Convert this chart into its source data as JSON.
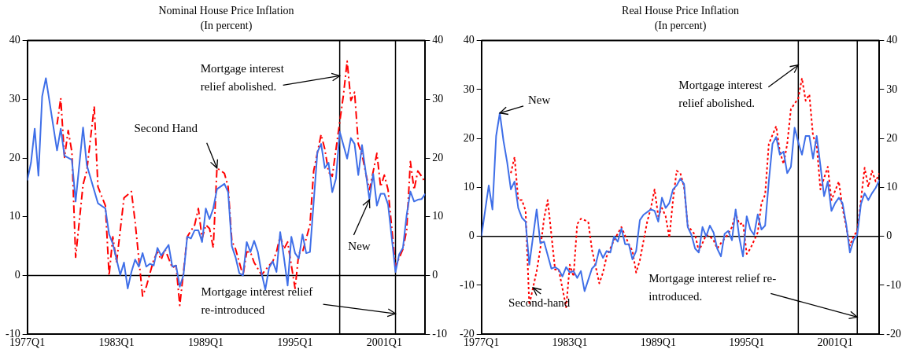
{
  "chart_data": [
    {
      "type": "line",
      "title": "Nominal House Price Inflation",
      "subtitle": "(In percent)",
      "xlim": [
        "1977-01",
        "2003-10"
      ],
      "xticks": [
        {
          "value": "1977-01",
          "label": "1977Q1"
        },
        {
          "value": "1983-01",
          "label": "1983Q1"
        },
        {
          "value": "1989-01",
          "label": "1989Q1"
        },
        {
          "value": "1995-01",
          "label": "1995Q1"
        },
        {
          "value": "2001-01",
          "label": "2001Q1"
        }
      ],
      "ylim": [
        -10,
        40
      ],
      "yticks": [
        -10,
        0,
        10,
        20,
        30,
        40
      ],
      "y2lim": [
        -10,
        40
      ],
      "y2ticks": [
        -10,
        0,
        10,
        20,
        30,
        40
      ],
      "series": [
        {
          "color": "#3f6fe8",
          "line_style": "solid",
          "x": [
            "1977-01",
            "1977-04",
            "1977-07",
            "1977-10",
            "1978-01",
            "1978-04",
            "1979-01",
            "1979-04",
            "1979-07",
            "1980-01",
            "1980-04",
            "1980-10",
            "1981-01",
            "1981-10",
            "1982-04",
            "1982-07",
            "1982-10",
            "1983-04",
            "1983-07",
            "1983-10",
            "1984-01",
            "1984-04",
            "1984-07",
            "1984-10",
            "1985-01",
            "1985-04",
            "1985-07",
            "1985-10",
            "1986-01",
            "1986-07",
            "1986-10",
            "1987-01",
            "1987-04",
            "1987-07",
            "1987-10",
            "1988-01",
            "1988-04",
            "1988-07",
            "1988-10",
            "1989-01",
            "1989-04",
            "1989-07",
            "1989-10",
            "1990-04",
            "1990-07",
            "1990-10",
            "1991-01",
            "1991-04",
            "1991-07",
            "1991-10",
            "1992-01",
            "1992-04",
            "1992-07",
            "1992-10",
            "1993-01",
            "1993-04",
            "1993-07",
            "1993-10",
            "1994-01",
            "1994-04",
            "1994-07",
            "1994-10",
            "1995-01",
            "1995-04",
            "1995-07",
            "1995-10",
            "1996-01",
            "1996-07",
            "1996-10",
            "1997-01",
            "1997-04",
            "1997-07",
            "1997-10",
            "1998-01",
            "1998-07",
            "1998-10",
            "1999-01",
            "1999-04",
            "1999-07",
            "2000-01",
            "2000-04",
            "2000-07",
            "2000-10",
            "2001-01",
            "2001-04",
            "2001-10",
            "2002-01",
            "2002-04",
            "2002-07",
            "2002-10",
            "2003-01",
            "2003-04",
            "2003-07",
            "2003-10"
          ],
          "values": [
            16.2,
            19.2,
            25,
            17,
            30.5,
            33.6,
            21.3,
            25,
            20.4,
            19.7,
            12.6,
            25.2,
            18.8,
            12.3,
            11.4,
            7,
            5.4,
            0.1,
            2.2,
            -2.2,
            0.6,
            2.7,
            1.5,
            3.8,
            1.5,
            2,
            1.7,
            4.7,
            3.4,
            5.2,
            1.5,
            1.7,
            -1.9,
            0.1,
            6.6,
            6.3,
            7.7,
            7.7,
            5.7,
            11.4,
            9.6,
            11.4,
            14.7,
            15.6,
            14.2,
            5,
            3.1,
            0.4,
            0,
            5.7,
            4,
            5.9,
            4,
            0.4,
            -2.4,
            1.3,
            2.4,
            0.6,
            7.4,
            3.1,
            -1.7,
            6.6,
            3.8,
            2.9,
            7,
            3.8,
            4,
            21,
            22.4,
            18.3,
            19.2,
            14.2,
            16.5,
            24.5,
            19.9,
            23.4,
            22.4,
            17.1,
            22.2,
            12.9,
            17.3,
            11.9,
            13.9,
            13.9,
            12.1,
            0.6,
            3.6,
            4.7,
            10.3,
            14.3,
            12.6,
            12.9,
            13,
            13.9
          ]
        },
        {
          "color": "#ff0000",
          "line_style": "dashed",
          "x": [
            "1979-01",
            "1979-04",
            "1979-07",
            "1979-10",
            "1980-01",
            "1980-04",
            "1980-10",
            "1981-01",
            "1981-07",
            "1981-10",
            "1982-04",
            "1982-07",
            "1982-10",
            "1983-01",
            "1983-07",
            "1984-01",
            "1984-04",
            "1984-10",
            "1985-01",
            "1985-07",
            "1985-10",
            "1986-01",
            "1986-04",
            "1986-10",
            "1987-01",
            "1987-04",
            "1987-07",
            "1987-10",
            "1988-04",
            "1988-07",
            "1988-10",
            "1989-01",
            "1989-04",
            "1989-07",
            "1989-10",
            "1990-04",
            "1990-07",
            "1990-10",
            "1991-01",
            "1991-07",
            "1991-10",
            "1992-01",
            "1992-04",
            "1992-10",
            "1993-04",
            "1993-07",
            "1993-10",
            "1994-01",
            "1994-04",
            "1994-07",
            "1995-01",
            "1995-04",
            "1995-07",
            "1996-01",
            "1996-04",
            "1996-10",
            "1997-01",
            "1997-04",
            "1997-07",
            "1997-10",
            "1998-01",
            "1998-04",
            "1998-07",
            "1998-10",
            "1999-01",
            "1999-04",
            "1999-07",
            "1999-10",
            "2000-01",
            "2000-07",
            "2000-10",
            "2001-01",
            "2001-04",
            "2001-10",
            "2002-04",
            "2002-07",
            "2002-10",
            "2003-01",
            "2003-04",
            "2003-07",
            "2003-10"
          ],
          "values": [
            25.7,
            30.2,
            20.1,
            24.7,
            21,
            3.1,
            15.5,
            17.8,
            28.8,
            15.1,
            11.9,
            0,
            6.6,
            2.2,
            13.2,
            14.3,
            9.1,
            -3.5,
            -1.9,
            2.7,
            4,
            2.7,
            4.5,
            1.3,
            1.7,
            -5.1,
            0.6,
            6.6,
            8.6,
            11.4,
            6.3,
            8.6,
            8,
            4.7,
            18.3,
            17.4,
            15.1,
            5.9,
            4.5,
            0,
            4,
            4,
            2.2,
            0.1,
            1.7,
            2.4,
            4,
            6.8,
            4.5,
            5.7,
            -2.2,
            3.8,
            4,
            8.6,
            17.8,
            24,
            21.5,
            17.6,
            16.9,
            21.5,
            26.1,
            30.7,
            36.5,
            29.8,
            31.2,
            22.4,
            20.6,
            17.4,
            14.6,
            20.8,
            15.1,
            17.1,
            14.6,
            1.5,
            4.5,
            7.7,
            19.4,
            14.6,
            17.8,
            16.9,
            15.8
          ]
        }
      ],
      "ref_lines": [
        {
          "axis": "y",
          "value": 0,
          "color": "#000000"
        },
        {
          "axis": "x",
          "value": "1998-01",
          "color": "#000000"
        },
        {
          "axis": "x",
          "value": "2001-10",
          "color": "#000000"
        }
      ],
      "annotations": [
        {
          "text": "Mortgage interest\nrelief abolished.",
          "x": "1998-01",
          "y": 34
        },
        {
          "text": "Second Hand",
          "x": "1989-10",
          "y": 18.3
        },
        {
          "text": "New",
          "x": "2000-01",
          "y": 12.9
        },
        {
          "text": "Mortgage interest relief\nre-introduced",
          "x": "2001-10",
          "y": -6.5
        }
      ]
    },
    {
      "type": "line",
      "title": "Real House Price Inflation",
      "subtitle": "(In percent)",
      "xlim": [
        "1977-01",
        "2004-01"
      ],
      "xticks": [
        {
          "value": "1977-01",
          "label": "1977Q1"
        },
        {
          "value": "1983-01",
          "label": "1983Q1"
        },
        {
          "value": "1989-01",
          "label": "1989Q1"
        },
        {
          "value": "1995-01",
          "label": "1995Q1"
        },
        {
          "value": "2001-01",
          "label": "2001Q1"
        }
      ],
      "ylim": [
        -20,
        40
      ],
      "yticks": [
        -20,
        -10,
        0,
        10,
        20,
        30,
        40
      ],
      "y2lim": [
        -20,
        40
      ],
      "y2ticks": [
        -20,
        -10,
        0,
        10,
        20,
        30,
        40
      ],
      "series": [
        {
          "color": "#3f6fe8",
          "line_style": "solid",
          "x": [
            "1977-01",
            "1977-07",
            "1977-10",
            "1978-01",
            "1978-04",
            "1978-07",
            "1978-10",
            "1979-01",
            "1979-04",
            "1979-07",
            "1979-10",
            "1980-01",
            "1980-04",
            "1980-10",
            "1981-01",
            "1981-04",
            "1981-10",
            "1982-01",
            "1982-04",
            "1982-07",
            "1982-10",
            "1983-01",
            "1983-04",
            "1983-07",
            "1983-10",
            "1984-01",
            "1984-07",
            "1984-10",
            "1985-01",
            "1985-04",
            "1985-07",
            "1985-10",
            "1986-01",
            "1986-04",
            "1986-07",
            "1986-10",
            "1987-01",
            "1987-04",
            "1987-07",
            "1987-10",
            "1988-01",
            "1988-07",
            "1988-10",
            "1989-01",
            "1989-04",
            "1989-07",
            "1989-10",
            "1990-01",
            "1990-04",
            "1990-07",
            "1990-10",
            "1991-01",
            "1991-04",
            "1991-07",
            "1991-10",
            "1992-01",
            "1992-04",
            "1992-07",
            "1992-10",
            "1993-01",
            "1993-04",
            "1993-07",
            "1993-10",
            "1994-01",
            "1994-04",
            "1994-07",
            "1994-10",
            "1995-01",
            "1995-04",
            "1995-07",
            "1995-10",
            "1996-01",
            "1996-04",
            "1996-07",
            "1996-10",
            "1997-01",
            "1997-04",
            "1997-07",
            "1997-10",
            "1998-01",
            "1998-04",
            "1998-07",
            "1998-10",
            "1999-01",
            "1999-04",
            "1999-07",
            "1999-10",
            "2000-01",
            "2000-04",
            "2000-07",
            "2000-10",
            "2001-01",
            "2001-04",
            "2001-07",
            "2001-10",
            "2002-01",
            "2002-04",
            "2002-07",
            "2002-10",
            "2003-01",
            "2003-04",
            "2003-07",
            "2003-10",
            "2004-01"
          ],
          "values": [
            0,
            10.4,
            5.5,
            20.5,
            25.2,
            19.5,
            15.1,
            9.6,
            11.2,
            5.8,
            3.8,
            3,
            -5.8,
            5.5,
            -1.4,
            -1.1,
            -6.6,
            -6.3,
            -6.8,
            -8.2,
            -6.3,
            -7.4,
            -7.1,
            -8.5,
            -7.1,
            -11.2,
            -6.6,
            -5.8,
            -2.7,
            -4.4,
            -3,
            -3.3,
            0,
            -1.1,
            1.6,
            -1.6,
            -1.6,
            -4.7,
            -3,
            3.3,
            4.4,
            5.5,
            5.2,
            3,
            7.9,
            5.8,
            6.8,
            9.6,
            10.4,
            11.8,
            10.7,
            1.9,
            0.3,
            -2.5,
            -3.3,
            1.9,
            0,
            2.2,
            0.8,
            -2.5,
            -4.1,
            0.5,
            1.1,
            -0.8,
            5.5,
            -0.3,
            -4.1,
            4.1,
            1.4,
            0.3,
            4.5,
            1.4,
            2.2,
            11.2,
            18.9,
            20.3,
            16.7,
            17.3,
            12.9,
            14.2,
            22.2,
            19.2,
            16.7,
            20.5,
            20.5,
            15.9,
            20.5,
            14.5,
            8.2,
            11.2,
            5.2,
            6.8,
            7.9,
            6.8,
            2.5,
            -3.3,
            -0.8,
            0.3,
            6.6,
            8.8,
            7.4,
            8.8,
            9.9,
            11.5
          ]
        },
        {
          "color": "#ff0000",
          "line_style": "dotted",
          "x": [
            "1979-01",
            "1979-04",
            "1979-07",
            "1979-10",
            "1980-01",
            "1980-04",
            "1980-10",
            "1981-01",
            "1981-04",
            "1981-07",
            "1982-01",
            "1982-04",
            "1982-10",
            "1983-01",
            "1983-04",
            "1983-07",
            "1983-10",
            "1984-04",
            "1984-07",
            "1985-01",
            "1985-04",
            "1985-07",
            "1986-01",
            "1986-07",
            "1987-01",
            "1987-04",
            "1987-07",
            "1987-10",
            "1988-04",
            "1988-07",
            "1988-10",
            "1989-01",
            "1989-04",
            "1989-07",
            "1989-10",
            "1990-01",
            "1990-04",
            "1990-07",
            "1990-10",
            "1991-01",
            "1991-07",
            "1991-10",
            "1992-01",
            "1992-04",
            "1992-07",
            "1992-10",
            "1993-01",
            "1993-04",
            "1993-10",
            "1994-01",
            "1994-04",
            "1994-07",
            "1994-10",
            "1995-01",
            "1995-04",
            "1995-10",
            "1996-01",
            "1996-04",
            "1996-07",
            "1997-01",
            "1997-04",
            "1997-07",
            "1997-10",
            "1998-01",
            "1998-07",
            "1998-10",
            "1999-01",
            "1999-04",
            "1999-07",
            "1999-10",
            "2000-01",
            "2000-07",
            "2000-10",
            "2001-04",
            "2001-07",
            "2002-01",
            "2002-04",
            "2002-07",
            "2002-10",
            "2003-01",
            "2003-04",
            "2003-07",
            "2003-10",
            "2004-01"
          ],
          "values": [
            12.9,
            16.2,
            7.4,
            7.4,
            5.2,
            -14,
            -7.1,
            -2.5,
            3.6,
            7.4,
            -6.8,
            -6.8,
            -14.5,
            -5.8,
            -8.2,
            2.5,
            3.6,
            3,
            -2.7,
            -9.6,
            -7.4,
            -4.1,
            -0.8,
            1.9,
            -1.6,
            -3,
            -7.4,
            -4.9,
            3,
            5.8,
            9.6,
            4.1,
            5.8,
            4.1,
            -0.3,
            7.4,
            13.4,
            12.9,
            10.1,
            2.2,
            0.3,
            -3,
            -1.4,
            0.3,
            0,
            -0.8,
            -2.5,
            -1.4,
            0.5,
            1.9,
            4.7,
            2.5,
            2.7,
            -3.6,
            -2.5,
            0.8,
            6.8,
            8.5,
            18.9,
            22.5,
            17.3,
            14.8,
            18.9,
            26,
            28.2,
            32.3,
            27.7,
            29,
            20.5,
            18.6,
            9.6,
            14.2,
            7.4,
            11.2,
            5.8,
            -1.9,
            0,
            1.1,
            7.4,
            14,
            10.1,
            13.4,
            11.2,
            12.9
          ]
        }
      ],
      "ref_lines": [
        {
          "axis": "y",
          "value": 0,
          "color": "#000000"
        },
        {
          "axis": "x",
          "value": "1998-07",
          "color": "#000000"
        },
        {
          "axis": "x",
          "value": "2002-07",
          "color": "#000000"
        }
      ],
      "annotations": [
        {
          "text": "New",
          "x": "1978-04",
          "y": 25.2
        },
        {
          "text": "Second-hand",
          "x": "1980-07",
          "y": -10.5
        },
        {
          "text": "Mortgage interest\nrelief abolished.",
          "x": "1998-07",
          "y": 35
        },
        {
          "text": "Mortgage interest relief re-\nintroduced.",
          "x": "2002-07",
          "y": -16.5
        }
      ]
    }
  ]
}
